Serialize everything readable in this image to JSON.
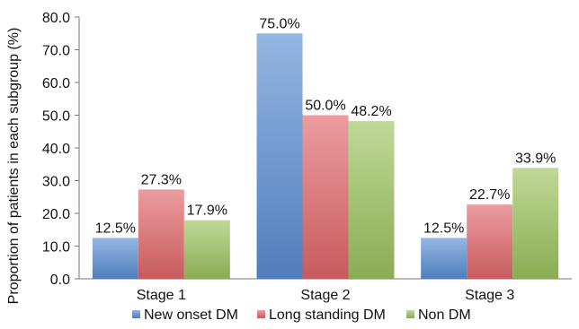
{
  "chart_data": {
    "type": "bar",
    "title": "",
    "xlabel": "",
    "ylabel": "Proportion of patients in each subgroup (%)",
    "ylim": [
      0,
      80
    ],
    "yticks": [
      "0.0",
      "10.0",
      "20.0",
      "30.0",
      "40.0",
      "50.0",
      "60.0",
      "70.0",
      "80.0"
    ],
    "categories": [
      "Stage 1",
      "Stage 2",
      "Stage 3"
    ],
    "series": [
      {
        "name": "New onset DM",
        "values": [
          12.5,
          75.0,
          12.5
        ],
        "labels": [
          "12.5%",
          "75.0%",
          "12.5%"
        ],
        "color": "#5b8fd4"
      },
      {
        "name": "Long standing DM",
        "values": [
          27.3,
          50.0,
          22.7
        ],
        "labels": [
          "27.3%",
          "50.0%",
          "22.7%"
        ],
        "color": "#e2676b"
      },
      {
        "name": "Non DM",
        "values": [
          17.9,
          48.2,
          33.9
        ],
        "labels": [
          "17.9%",
          "48.2%",
          "33.9%"
        ],
        "color": "#9cc45f"
      }
    ],
    "legend_position": "bottom",
    "grid": false
  }
}
